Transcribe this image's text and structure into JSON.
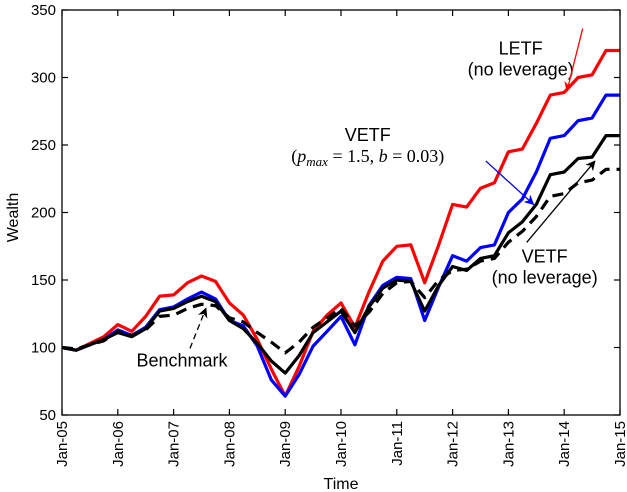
{
  "chart_data": {
    "type": "line",
    "title": "",
    "xlabel": "Time",
    "ylabel": "Wealth",
    "xlim": [
      0,
      10
    ],
    "ylim": [
      50,
      350
    ],
    "x_ticks": [
      0,
      1,
      2,
      3,
      4,
      5,
      6,
      7,
      8,
      9,
      10
    ],
    "x_tick_labels": [
      "Jan-05",
      "Jan-06",
      "Jan-07",
      "Jan-08",
      "Jan-09",
      "Jan-10",
      "Jan-11",
      "Jan-12",
      "Jan-13",
      "Jan-14",
      "Jan-15"
    ],
    "y_ticks": [
      50,
      100,
      150,
      200,
      250,
      300,
      350
    ],
    "y_tick_labels": [
      "50",
      "100",
      "150",
      "200",
      "250",
      "300",
      "350"
    ],
    "series": [
      {
        "name": "LETF (no leverage)",
        "color": "#ff0000",
        "style": "solid",
        "x": [
          0,
          0.25,
          0.5,
          0.75,
          1,
          1.25,
          1.5,
          1.75,
          2,
          2.25,
          2.5,
          2.75,
          3,
          3.25,
          3.5,
          3.75,
          4,
          4.25,
          4.5,
          4.75,
          5,
          5.25,
          5.5,
          5.75,
          6,
          6.25,
          6.5,
          6.75,
          7,
          7.25,
          7.5,
          7.75,
          8,
          8.25,
          8.5,
          8.75,
          9,
          9.25,
          9.5,
          9.75,
          10
        ],
        "values": [
          100,
          98,
          103,
          108,
          117,
          112,
          123,
          138,
          139,
          148,
          153,
          149,
          133,
          124,
          106,
          84,
          64,
          86,
          112,
          124,
          133,
          115,
          141,
          164,
          175,
          176,
          148,
          176,
          206,
          204,
          218,
          222,
          245,
          247,
          266,
          287,
          289,
          300,
          302,
          320,
          320
        ]
      },
      {
        "name": "VETF (p_max = 1.5, b = 0.03)",
        "color": "#0000ff",
        "style": "solid",
        "x": [
          0,
          0.25,
          0.5,
          0.75,
          1,
          1.25,
          1.5,
          1.75,
          2,
          2.25,
          2.5,
          2.75,
          3,
          3.25,
          3.5,
          3.75,
          4,
          4.25,
          4.5,
          4.75,
          5,
          5.25,
          5.5,
          5.75,
          6,
          6.25,
          6.5,
          6.75,
          7,
          7.25,
          7.5,
          7.75,
          8,
          8.25,
          8.5,
          8.75,
          9,
          9.25,
          9.5,
          9.75,
          10
        ],
        "values": [
          100,
          98,
          102,
          106,
          113,
          109,
          115,
          128,
          130,
          136,
          141,
          136,
          120,
          116,
          101,
          76,
          64,
          80,
          101,
          112,
          123,
          102,
          131,
          146,
          152,
          151,
          120,
          145,
          168,
          164,
          174,
          176,
          200,
          210,
          230,
          255,
          257,
          268,
          270,
          287,
          287
        ]
      },
      {
        "name": "VETF (no leverage)",
        "color": "#000000",
        "style": "solid",
        "x": [
          0,
          0.25,
          0.5,
          0.75,
          1,
          1.25,
          1.5,
          1.75,
          2,
          2.25,
          2.5,
          2.75,
          3,
          3.25,
          3.5,
          3.75,
          4,
          4.25,
          4.5,
          4.75,
          5,
          5.25,
          5.5,
          5.75,
          6,
          6.25,
          6.5,
          6.75,
          7,
          7.25,
          7.5,
          7.75,
          8,
          8.25,
          8.5,
          8.75,
          9,
          9.25,
          9.5,
          9.75,
          10
        ],
        "values": [
          100,
          98,
          102,
          106,
          111,
          108,
          114,
          127,
          129,
          134,
          138,
          134,
          120,
          114,
          103,
          90,
          81,
          94,
          111,
          119,
          127,
          111,
          130,
          144,
          150,
          149,
          127,
          146,
          160,
          157,
          166,
          168,
          185,
          193,
          206,
          228,
          230,
          240,
          241,
          257,
          257
        ]
      },
      {
        "name": "Benchmark",
        "color": "#000000",
        "style": "dashed",
        "x": [
          0,
          0.25,
          0.5,
          0.75,
          1,
          1.25,
          1.5,
          1.75,
          2,
          2.25,
          2.5,
          2.75,
          3,
          3.25,
          3.5,
          3.75,
          4,
          4.25,
          4.5,
          4.75,
          5,
          5.25,
          5.5,
          5.75,
          6,
          6.25,
          6.5,
          6.75,
          7,
          7.25,
          7.5,
          7.75,
          8,
          8.25,
          8.5,
          8.75,
          9,
          9.25,
          9.5,
          9.75,
          10
        ],
        "values": [
          100,
          99,
          102,
          105,
          112,
          109,
          113,
          123,
          124,
          129,
          132,
          131,
          122,
          119,
          111,
          104,
          96,
          104,
          115,
          122,
          129,
          116,
          126,
          140,
          148,
          149,
          137,
          150,
          157,
          158,
          164,
          166,
          178,
          186,
          197,
          212,
          214,
          222,
          224,
          232,
          232
        ]
      }
    ],
    "annotations": [
      {
        "id": "letf",
        "lines": [
          "LETF",
          "(no leverage)"
        ],
        "series": "LETF (no leverage)",
        "arrow_color": "#ff0000",
        "arrow_dashed": false,
        "text_x": 8.22,
        "text_y": 317,
        "target_x": 9.05,
        "target_y": 290
      },
      {
        "id": "vetf_pmax",
        "lines": [
          "VETF",
          "(p_max = 1.5, b = 0.03)"
        ],
        "series": "VETF (p_max = 1.5, b = 0.03)",
        "arrow_color": "#0000ff",
        "arrow_dashed": false,
        "text_x": 5.48,
        "text_y": 253,
        "target_x": 8.45,
        "target_y": 206
      },
      {
        "id": "vetf_nolev",
        "lines": [
          "VETF",
          "(no leverage)"
        ],
        "series": "VETF (no leverage)",
        "arrow_color": "#000000",
        "arrow_dashed": false,
        "text_x": 8.65,
        "text_y": 163,
        "target_x": 9.55,
        "target_y": 238
      },
      {
        "id": "benchmark",
        "lines": [
          "Benchmark"
        ],
        "series": "Benchmark",
        "arrow_color": "#000000",
        "arrow_dashed": true,
        "text_x": 2.15,
        "text_y": 86,
        "target_x": 2.58,
        "target_y": 129
      }
    ],
    "math_parts": {
      "open": "(",
      "p": "p",
      "sub": "max",
      "eq1": " = 1.5, ",
      "b": "b",
      "eq2": " = 0.03)"
    }
  }
}
